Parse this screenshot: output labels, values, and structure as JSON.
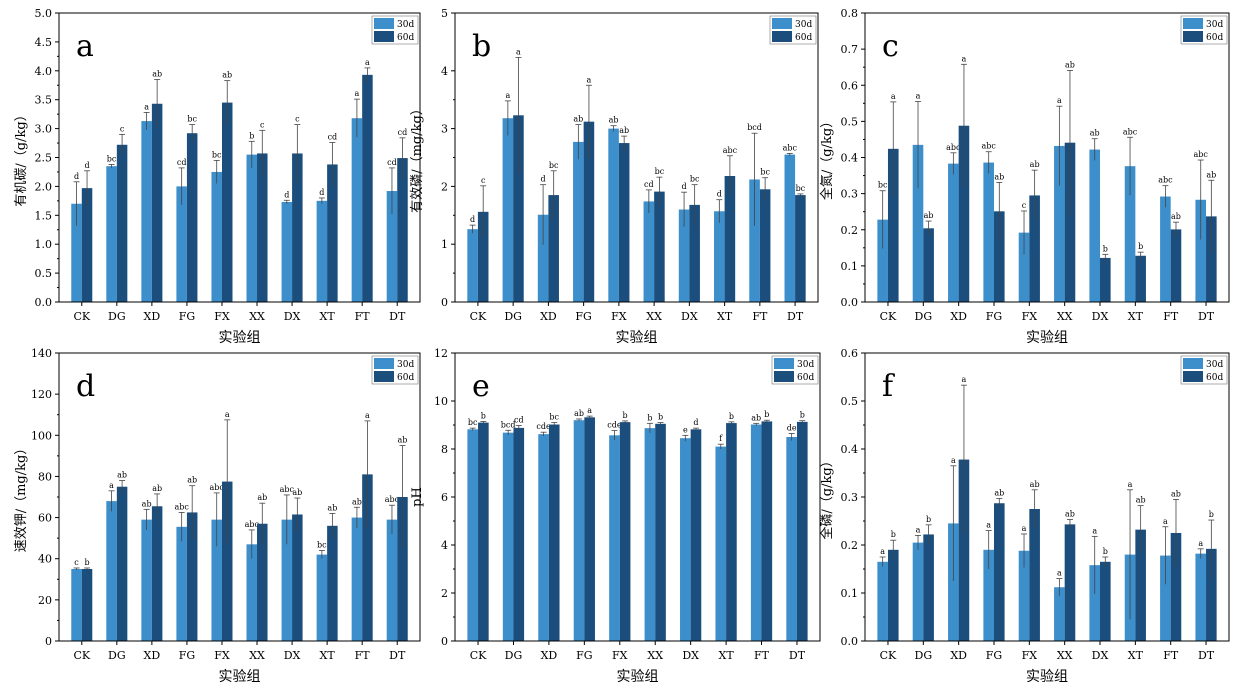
{
  "colors": {
    "series_30d": "#3d8fcb",
    "series_60d": "#1b4e7c"
  },
  "chart_data": [
    {
      "panel": "a",
      "type": "bar",
      "ylabel": "有机碳/（g/kg）",
      "xlabel": "实验组",
      "ylim": [
        0,
        5
      ],
      "yticks": [
        "0.0",
        "0.5",
        "1.0",
        "1.5",
        "2.0",
        "2.5",
        "3.0",
        "3.5",
        "4.0",
        "4.5",
        "5.0"
      ],
      "categories": [
        "CK",
        "DG",
        "XD",
        "FG",
        "FX",
        "XX",
        "DX",
        "XT",
        "FT",
        "DT"
      ],
      "legend": {
        "position": "top-right"
      },
      "series": [
        {
          "name": "30d",
          "values": [
            1.7,
            2.35,
            3.13,
            2.0,
            2.25,
            2.55,
            1.73,
            1.75,
            3.18,
            1.92
          ],
          "errors": [
            0.38,
            0.03,
            0.15,
            0.32,
            0.2,
            0.23,
            0.03,
            0.05,
            0.33,
            0.4
          ],
          "labels": [
            "d",
            "bc",
            "a",
            "cd",
            "bc",
            "b",
            "d",
            "d",
            "a",
            "cd"
          ]
        },
        {
          "name": "60d",
          "values": [
            1.97,
            2.72,
            3.43,
            2.92,
            3.45,
            2.57,
            2.57,
            2.38,
            3.93,
            2.49
          ],
          "errors": [
            0.3,
            0.18,
            0.42,
            0.15,
            0.38,
            0.4,
            0.5,
            0.38,
            0.12,
            0.35
          ],
          "labels": [
            "d",
            "c",
            "ab",
            "bc",
            "ab",
            "c",
            "c",
            "cd",
            "a",
            "cd"
          ]
        }
      ]
    },
    {
      "panel": "b",
      "type": "bar",
      "ylabel": "有效磷/（mg/kg）",
      "xlabel": "实验组",
      "ylim": [
        0,
        5
      ],
      "yticks": [
        "0",
        "1",
        "2",
        "3",
        "4",
        "5"
      ],
      "categories": [
        "CK",
        "DG",
        "XD",
        "FG",
        "FX",
        "XX",
        "DX",
        "XT",
        "FT",
        "DT"
      ],
      "legend": {
        "position": "top-right"
      },
      "series": [
        {
          "name": "30d",
          "values": [
            1.26,
            3.18,
            1.51,
            2.77,
            3.0,
            1.74,
            1.6,
            1.57,
            2.12,
            2.55
          ],
          "errors": [
            0.07,
            0.3,
            0.52,
            0.3,
            0.05,
            0.2,
            0.3,
            0.2,
            0.8,
            0.02
          ],
          "labels": [
            "d",
            "a",
            "d",
            "ab",
            "ab",
            "cd",
            "d",
            "d",
            "bcd",
            "abc"
          ]
        },
        {
          "name": "60d",
          "values": [
            1.56,
            3.23,
            1.85,
            3.12,
            2.75,
            1.91,
            1.68,
            2.18,
            1.95,
            1.85
          ],
          "errors": [
            0.45,
            1.0,
            0.42,
            0.63,
            0.12,
            0.25,
            0.35,
            0.35,
            0.2,
            0.02
          ],
          "labels": [
            "c",
            "a",
            "bc",
            "a",
            "ab",
            "bc",
            "bc",
            "abc",
            "bc",
            "bc"
          ]
        }
      ]
    },
    {
      "panel": "c",
      "type": "bar",
      "ylabel": "全氮/（g/kg）",
      "xlabel": "实验组",
      "ylim": [
        0,
        0.8
      ],
      "yticks": [
        "0.0",
        "0.1",
        "0.2",
        "0.3",
        "0.4",
        "0.5",
        "0.6",
        "0.7",
        "0.8"
      ],
      "categories": [
        "CK",
        "DG",
        "XD",
        "FG",
        "FX",
        "XX",
        "DX",
        "XT",
        "FT",
        "DT"
      ],
      "legend": {
        "position": "top-right"
      },
      "series": [
        {
          "name": "30d",
          "values": [
            0.228,
            0.435,
            0.383,
            0.386,
            0.192,
            0.432,
            0.422,
            0.376,
            0.292,
            0.283
          ],
          "errors": [
            0.08,
            0.12,
            0.03,
            0.03,
            0.06,
            0.11,
            0.03,
            0.08,
            0.03,
            0.11
          ],
          "labels": [
            "bc",
            "a",
            "abc",
            "abc",
            "c",
            "a",
            "ab",
            "abc",
            "abc",
            "abc"
          ]
        },
        {
          "name": "60d",
          "values": [
            0.424,
            0.204,
            0.488,
            0.251,
            0.295,
            0.441,
            0.122,
            0.128,
            0.201,
            0.237
          ],
          "errors": [
            0.13,
            0.02,
            0.17,
            0.08,
            0.07,
            0.2,
            0.01,
            0.01,
            0.02,
            0.1
          ],
          "labels": [
            "a",
            "ab",
            "a",
            "ab",
            "ab",
            "ab",
            "b",
            "b",
            "ab",
            "ab"
          ]
        }
      ]
    },
    {
      "panel": "d",
      "type": "bar",
      "ylabel": "速效钾/（mg/kg）",
      "xlabel": "实验组",
      "ylim": [
        0,
        140
      ],
      "yticks": [
        "0",
        "20",
        "40",
        "60",
        "80",
        "100",
        "120",
        "140"
      ],
      "categories": [
        "CK",
        "DG",
        "XD",
        "FG",
        "FX",
        "XX",
        "DX",
        "XT",
        "FT",
        "DT"
      ],
      "legend": {
        "position": "top-right"
      },
      "series": [
        {
          "name": "30d",
          "values": [
            35,
            68,
            59,
            55.5,
            59,
            47,
            59,
            42,
            60,
            59
          ],
          "errors": [
            0.5,
            5,
            5,
            7,
            13,
            7,
            12,
            2,
            5,
            7
          ],
          "labels": [
            "c",
            "a",
            "ab",
            "abc",
            "abc",
            "abc",
            "abc",
            "bc",
            "ab",
            "abc"
          ]
        },
        {
          "name": "60d",
          "values": [
            35,
            75,
            65.5,
            62.5,
            77.5,
            57,
            61.5,
            56,
            81,
            70
          ],
          "errors": [
            0.5,
            3,
            6,
            13,
            30,
            10,
            8,
            6,
            26,
            25
          ],
          "labels": [
            "b",
            "ab",
            "ab",
            "ab",
            "a",
            "ab",
            "ab",
            "ab",
            "a",
            "ab"
          ]
        }
      ]
    },
    {
      "panel": "e",
      "type": "bar",
      "ylabel": "pH",
      "xlabel": "实验组",
      "ylim": [
        0,
        12
      ],
      "yticks": [
        "0",
        "2",
        "4",
        "6",
        "8",
        "10",
        "12"
      ],
      "categories": [
        "CK",
        "DG",
        "XD",
        "FG",
        "FX",
        "XX",
        "DX",
        "XT",
        "FT",
        "DT"
      ],
      "legend": {
        "position": "top-right"
      },
      "series": [
        {
          "name": "30d",
          "values": [
            8.82,
            8.68,
            8.62,
            9.2,
            8.57,
            8.87,
            8.45,
            8.1,
            9.02,
            8.5
          ],
          "errors": [
            0.05,
            0.1,
            0.08,
            0.05,
            0.2,
            0.2,
            0.12,
            0.1,
            0.05,
            0.15
          ],
          "labels": [
            "bc",
            "bcd",
            "cde",
            "ab",
            "cde",
            "b",
            "e",
            "f",
            "ab",
            "de"
          ]
        },
        {
          "name": "60d",
          "values": [
            9.1,
            8.88,
            9.02,
            9.32,
            9.12,
            9.05,
            8.82,
            9.08,
            9.15,
            9.13
          ],
          "errors": [
            0.05,
            0.1,
            0.08,
            0.05,
            0.05,
            0.05,
            0.05,
            0.05,
            0.05,
            0.05
          ],
          "labels": [
            "b",
            "cd",
            "bc",
            "a",
            "b",
            "b",
            "d",
            "b",
            "b",
            "b"
          ]
        }
      ]
    },
    {
      "panel": "f",
      "type": "bar",
      "ylabel": "全磷/（g/kg）",
      "xlabel": "实验组",
      "ylim": [
        0,
        0.6
      ],
      "yticks": [
        "0.0",
        "0.1",
        "0.2",
        "0.3",
        "0.4",
        "0.5",
        "0.6"
      ],
      "categories": [
        "CK",
        "DG",
        "XD",
        "FG",
        "FX",
        "XX",
        "DX",
        "XT",
        "FT",
        "DT"
      ],
      "legend": {
        "position": "top-right"
      },
      "series": [
        {
          "name": "30d",
          "values": [
            0.165,
            0.205,
            0.245,
            0.19,
            0.188,
            0.112,
            0.158,
            0.18,
            0.178,
            0.182
          ],
          "errors": [
            0.01,
            0.015,
            0.12,
            0.04,
            0.035,
            0.018,
            0.06,
            0.135,
            0.06,
            0.01
          ],
          "labels": [
            "a",
            "a",
            "a",
            "a",
            "a",
            "a",
            "a",
            "a",
            "a",
            "a"
          ]
        },
        {
          "name": "60d",
          "values": [
            0.19,
            0.222,
            0.378,
            0.287,
            0.275,
            0.243,
            0.165,
            0.232,
            0.225,
            0.192
          ],
          "errors": [
            0.02,
            0.02,
            0.155,
            0.01,
            0.04,
            0.01,
            0.01,
            0.05,
            0.07,
            0.06
          ],
          "labels": [
            "b",
            "b",
            "a",
            "ab",
            "ab",
            "ab",
            "b",
            "ab",
            "ab",
            "b"
          ]
        }
      ]
    }
  ]
}
